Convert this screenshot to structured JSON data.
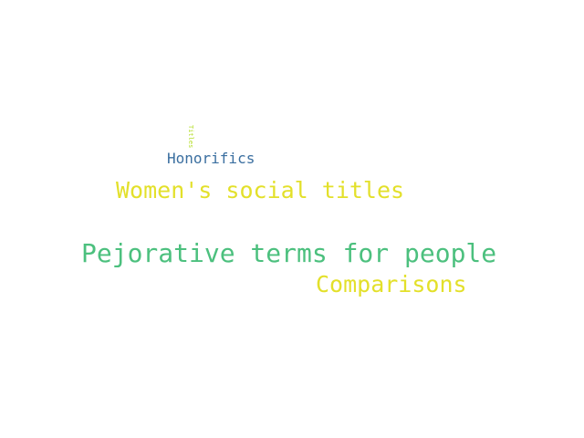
{
  "word_cloud": {
    "background": "#ffffff",
    "words": [
      {
        "text": "Titles",
        "color": "#b5de2b",
        "orientation": "vertical"
      },
      {
        "text": "Honorifics",
        "color": "#3b6fa0",
        "orientation": "horizontal"
      },
      {
        "text": "Women's social titles",
        "color": "#e3e02a",
        "orientation": "horizontal"
      },
      {
        "text": "Pejorative terms for people",
        "color": "#4cc07e",
        "orientation": "horizontal"
      },
      {
        "text": "Comparisons",
        "color": "#e3e02a",
        "orientation": "horizontal"
      }
    ]
  }
}
